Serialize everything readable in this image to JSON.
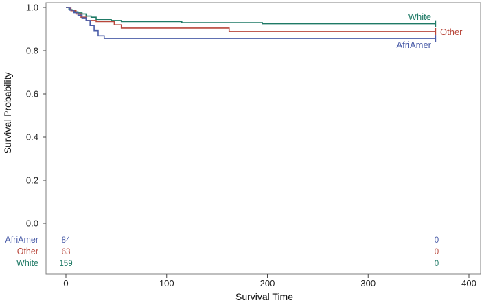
{
  "chart_data": {
    "type": "line",
    "xlabel": "Survival Time",
    "ylabel": "Survival Probability",
    "xlim": [
      0,
      400
    ],
    "ylim": [
      0.0,
      1.0
    ],
    "x_ticks": [
      0,
      100,
      200,
      300,
      400
    ],
    "y_ticks": [
      0.0,
      0.2,
      0.4,
      0.6,
      0.8,
      1.0
    ],
    "x_tick_labels": [
      "0",
      "100",
      "200",
      "300",
      "400"
    ],
    "y_tick_labels": [
      "0.0",
      "0.2",
      "0.4",
      "0.6",
      "0.8",
      "1.0"
    ],
    "grid": false,
    "step": true,
    "series": [
      {
        "name": "White",
        "color": "#1f7a66",
        "x": [
          0,
          3,
          6,
          9,
          12,
          16,
          20,
          25,
          30,
          45,
          55,
          115,
          195,
          367
        ],
        "y": [
          1.0,
          0.99,
          0.985,
          0.98,
          0.975,
          0.97,
          0.96,
          0.955,
          0.945,
          0.94,
          0.935,
          0.93,
          0.925,
          0.925
        ],
        "censor_x": [
          367
        ],
        "risk": [
          "159",
          "0"
        ]
      },
      {
        "name": "Other",
        "color": "#b8463a",
        "x": [
          0,
          5,
          10,
          15,
          20,
          30,
          48,
          55,
          162,
          367
        ],
        "y": [
          1.0,
          0.985,
          0.97,
          0.955,
          0.94,
          0.935,
          0.92,
          0.905,
          0.889,
          0.889
        ],
        "censor_x": [
          367
        ],
        "risk": [
          "63",
          "0"
        ]
      },
      {
        "name": "AfriAmer",
        "color": "#4a5ca8",
        "x": [
          0,
          4,
          8,
          12,
          16,
          20,
          24,
          28,
          32,
          38,
          367
        ],
        "y": [
          1.0,
          0.988,
          0.976,
          0.964,
          0.952,
          0.94,
          0.917,
          0.893,
          0.869,
          0.857,
          0.857
        ],
        "censor_x": [
          367
        ],
        "risk": [
          "84",
          "0"
        ]
      }
    ],
    "risk_table": {
      "times": [
        0,
        367
      ],
      "rows": [
        "AfriAmer",
        "Other",
        "White"
      ]
    }
  }
}
